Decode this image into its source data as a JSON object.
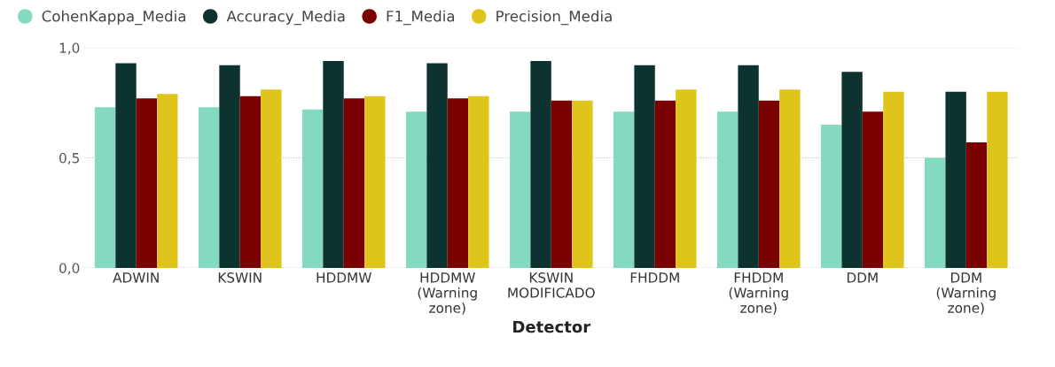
{
  "chart_data": {
    "type": "bar",
    "xlabel": "Detector",
    "categories": [
      "ADWIN",
      "KSWIN",
      "HDDMW",
      "HDDMW\n(Warning\nzone)",
      "KSWIN\nMODIFICADO",
      "FHDDM",
      "FHDDM\n(Warning\nzone)",
      "DDM",
      "DDM\n(Warning\nzone)"
    ],
    "series": [
      {
        "name": "CohenKappa_Media",
        "color": "#84dac0",
        "values": [
          0.73,
          0.73,
          0.72,
          0.71,
          0.71,
          0.71,
          0.71,
          0.65,
          0.5
        ]
      },
      {
        "name": "Accuracy_Media",
        "color": "#0d3330",
        "values": [
          0.93,
          0.92,
          0.94,
          0.93,
          0.94,
          0.92,
          0.92,
          0.89,
          0.8
        ]
      },
      {
        "name": "F1_Media",
        "color": "#7b0000",
        "values": [
          0.77,
          0.78,
          0.77,
          0.77,
          0.76,
          0.76,
          0.76,
          0.71,
          0.57
        ]
      },
      {
        "name": "Precision_Media",
        "color": "#dfc41c",
        "values": [
          0.79,
          0.81,
          0.78,
          0.78,
          0.76,
          0.81,
          0.81,
          0.8,
          0.8
        ]
      }
    ],
    "ylim": [
      0,
      1.0
    ],
    "yticks": [
      {
        "value": 0,
        "label": "0,0"
      },
      {
        "value": 0.5,
        "label": "0,5"
      },
      {
        "value": 1.0,
        "label": "1,0"
      }
    ],
    "grid": "y",
    "legend": "top left"
  }
}
